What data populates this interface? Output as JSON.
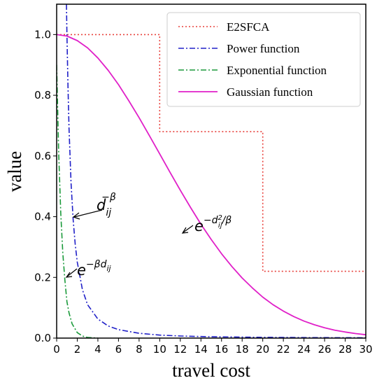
{
  "chart_data": {
    "type": "line",
    "xlabel": "travel cost",
    "ylabel": "value",
    "xlim": [
      0,
      30
    ],
    "ylim": [
      0,
      1.1
    ],
    "x_ticks": [
      "0",
      "2",
      "4",
      "6",
      "8",
      "10",
      "12",
      "14",
      "16",
      "18",
      "20",
      "22",
      "24",
      "26",
      "28",
      "30"
    ],
    "y_ticks": [
      "0.0",
      "0.2",
      "0.4",
      "0.6",
      "0.8",
      "1.0"
    ],
    "grid": false,
    "legend_position": "top-right",
    "series": [
      {
        "name": "E2SFCA",
        "color": "#e8413c",
        "style": "dotted",
        "x": [
          0,
          10,
          10,
          20,
          20,
          30
        ],
        "y": [
          1.0,
          1.0,
          0.68,
          0.68,
          0.22,
          0.22
        ]
      },
      {
        "name": "Power function",
        "color": "#2020c8",
        "style": "dashdot",
        "x": [
          0.95,
          1,
          1.1,
          1.2,
          1.4,
          1.6,
          1.8,
          2,
          2.5,
          3,
          4,
          5,
          6,
          8,
          10,
          12,
          15,
          20,
          25,
          30
        ],
        "y": [
          1.1,
          1.0,
          0.83,
          0.69,
          0.51,
          0.39,
          0.31,
          0.25,
          0.16,
          0.11,
          0.063,
          0.04,
          0.028,
          0.016,
          0.01,
          0.007,
          0.0044,
          0.0025,
          0.0016,
          0.0011
        ]
      },
      {
        "name": "Exponential function",
        "color": "#1a9a3a",
        "style": "dashdot",
        "x": [
          0,
          0.2,
          0.4,
          0.6,
          0.8,
          1.0,
          1.2,
          1.5,
          2.0,
          2.5,
          3.0,
          4.0
        ],
        "y": [
          0.9,
          0.61,
          0.41,
          0.28,
          0.19,
          0.12,
          0.083,
          0.047,
          0.018,
          0.007,
          0.002,
          0.0
        ]
      },
      {
        "name": "Gaussian function",
        "color": "#e020c8",
        "style": "solid",
        "x": [
          0,
          1,
          2,
          3,
          4,
          5,
          6,
          7,
          8,
          9,
          10,
          11,
          12,
          13,
          14,
          15,
          16,
          17,
          18,
          19,
          20,
          21,
          22,
          23,
          24,
          25,
          26,
          27,
          28,
          29,
          30
        ],
        "y": [
          1.0,
          0.995,
          0.98,
          0.956,
          0.923,
          0.882,
          0.835,
          0.782,
          0.726,
          0.667,
          0.607,
          0.546,
          0.487,
          0.43,
          0.375,
          0.325,
          0.278,
          0.236,
          0.198,
          0.165,
          0.135,
          0.11,
          0.089,
          0.071,
          0.056,
          0.044,
          0.034,
          0.026,
          0.02,
          0.015,
          0.011
        ]
      }
    ],
    "annotations": [
      {
        "id": "power",
        "base": "d",
        "sub": "ij",
        "sup": "−β",
        "at_x": 1.5,
        "at_y": 0.4
      },
      {
        "id": "exp",
        "base": "e",
        "sub": "",
        "sup": "−βd",
        "sup_sub": "ij",
        "at_x": 1.0,
        "at_y": 0.2
      },
      {
        "id": "gauss",
        "base": "e",
        "sub": "",
        "sup": "−d",
        "sup_sup": "2",
        "sup_sub": "ij",
        "sup_tail": "/β",
        "at_x": 12.5,
        "at_y": 0.35
      }
    ]
  }
}
